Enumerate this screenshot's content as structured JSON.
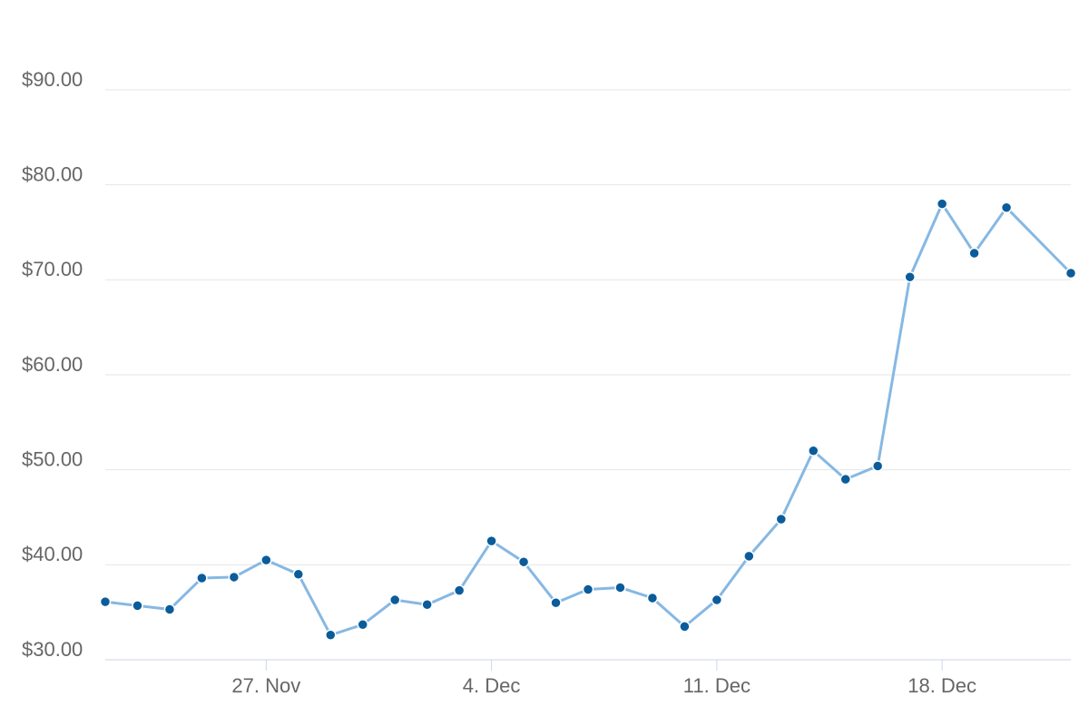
{
  "chart_data": {
    "type": "line",
    "x": [
      "22. Nov",
      "23. Nov",
      "24. Nov",
      "25. Nov",
      "26. Nov",
      "27. Nov",
      "28. Nov",
      "29. Nov",
      "30. Nov",
      "1. Dec",
      "2. Dec",
      "3. Dec",
      "4. Dec",
      "5. Dec",
      "6. Dec",
      "7. Dec",
      "8. Dec",
      "9. Dec",
      "10. Dec",
      "11. Dec",
      "12. Dec",
      "13. Dec",
      "14. Dec",
      "15. Dec",
      "16. Dec",
      "17. Dec",
      "18. Dec",
      "19. Dec",
      "20. Dec",
      "22. Dec"
    ],
    "series": [
      {
        "color": "#86b8e3",
        "marker_color": "#0b5c9a",
        "values": [
          36.1,
          35.7,
          35.3,
          38.6,
          38.7,
          40.5,
          39.0,
          32.6,
          33.7,
          36.3,
          35.8,
          37.3,
          42.5,
          40.3,
          36.0,
          37.4,
          37.6,
          36.5,
          33.5,
          36.3,
          40.9,
          44.8,
          52.0,
          49.0,
          50.4,
          70.3,
          78.0,
          72.8,
          77.6,
          70.7
        ]
      }
    ],
    "xticks": [
      "27. Nov",
      "4. Dec",
      "11. Dec",
      "18. Dec"
    ],
    "ylim": [
      30,
      90
    ],
    "yticks": [
      {
        "value": 30,
        "label": "$30.00"
      },
      {
        "value": 40,
        "label": "$40.00"
      },
      {
        "value": 50,
        "label": "$50.00"
      },
      {
        "value": 60,
        "label": "$60.00"
      },
      {
        "value": 70,
        "label": "$70.00"
      },
      {
        "value": 80,
        "label": "$80.00"
      },
      {
        "value": 90,
        "label": "$90.00"
      }
    ],
    "grid": true
  }
}
